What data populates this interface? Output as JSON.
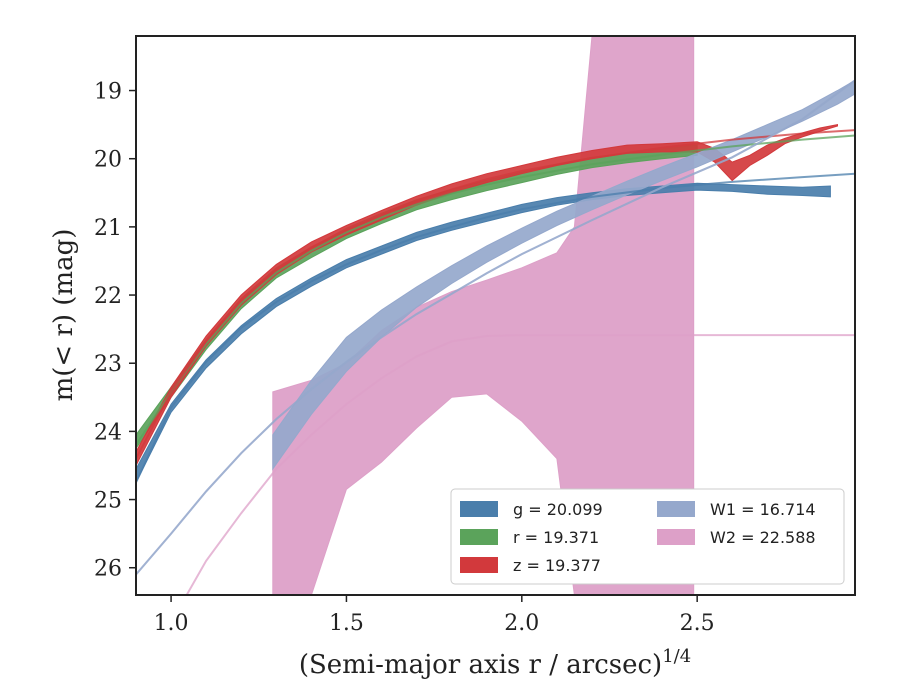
{
  "chart_data": {
    "type": "line",
    "xlabel": "(Semi-major axis r / arcsec)",
    "xlabel_superscript": "1/4",
    "ylabel": "m(< r) (mag)",
    "xlim": [
      0.9,
      2.95
    ],
    "ylim": [
      26.4,
      18.2
    ],
    "y_inverted": true,
    "xticks": [
      1.0,
      1.5,
      2.0,
      2.5
    ],
    "xtick_labels": [
      "1.0",
      "1.5",
      "2.0",
      "2.5"
    ],
    "yticks": [
      19,
      20,
      21,
      22,
      23,
      24,
      25,
      26
    ],
    "ytick_labels": [
      "19",
      "20",
      "21",
      "22",
      "23",
      "24",
      "25",
      "26"
    ],
    "grid": false,
    "legend_position": "lower-right",
    "series": [
      {
        "name": "g",
        "label": "g = 20.099",
        "color": "#4a7eab",
        "band": {
          "x": [
            0.9,
            1.0,
            1.1,
            1.2,
            1.3,
            1.4,
            1.5,
            1.6,
            1.7,
            1.8,
            1.9,
            2.0,
            2.1,
            2.2,
            2.3,
            2.4,
            2.5,
            2.6,
            2.7,
            2.8,
            2.88
          ],
          "y_low": [
            24.55,
            23.6,
            22.95,
            22.45,
            22.05,
            21.75,
            21.48,
            21.28,
            21.08,
            20.93,
            20.8,
            20.67,
            20.57,
            20.5,
            20.44,
            20.4,
            20.36,
            20.38,
            20.4,
            20.42,
            20.4
          ],
          "y_high": [
            24.75,
            23.72,
            23.07,
            22.57,
            22.17,
            21.87,
            21.6,
            21.4,
            21.2,
            21.05,
            20.92,
            20.79,
            20.68,
            20.6,
            20.54,
            20.5,
            20.46,
            20.48,
            20.52,
            20.54,
            20.56
          ]
        },
        "model": {
          "x": [
            0.9,
            1.0,
            1.1,
            1.2,
            1.3,
            1.4,
            1.5,
            1.6,
            1.7,
            1.8,
            1.9,
            2.0,
            2.2,
            2.4,
            2.6,
            2.8,
            2.95
          ],
          "y": [
            24.75,
            23.65,
            22.98,
            22.48,
            22.1,
            21.8,
            21.55,
            21.34,
            21.15,
            21.0,
            20.86,
            20.74,
            20.56,
            20.43,
            20.34,
            20.27,
            20.22
          ]
        }
      },
      {
        "name": "r",
        "label": "r = 19.371",
        "color": "#5ba35b",
        "band": {
          "x": [
            0.9,
            1.0,
            1.1,
            1.2,
            1.3,
            1.4,
            1.5,
            1.6,
            1.7,
            1.8,
            1.9,
            2.0,
            2.1,
            2.2,
            2.3,
            2.4,
            2.5
          ],
          "y_low": [
            24.05,
            23.35,
            22.65,
            22.05,
            21.6,
            21.3,
            21.02,
            20.8,
            20.6,
            20.45,
            20.32,
            20.2,
            20.08,
            19.98,
            19.92,
            19.86,
            19.8
          ],
          "y_high": [
            24.25,
            23.5,
            22.8,
            22.2,
            21.75,
            21.45,
            21.17,
            20.95,
            20.75,
            20.6,
            20.47,
            20.35,
            20.23,
            20.13,
            20.06,
            20.0,
            19.95
          ]
        },
        "model": {
          "x": [
            0.9,
            1.0,
            1.1,
            1.2,
            1.3,
            1.4,
            1.5,
            1.6,
            1.7,
            1.8,
            1.9,
            2.0,
            2.2,
            2.4,
            2.6,
            2.8,
            2.95
          ],
          "y": [
            24.2,
            23.42,
            22.72,
            22.12,
            21.67,
            21.35,
            21.08,
            20.86,
            20.67,
            20.51,
            20.38,
            20.27,
            20.08,
            19.94,
            19.82,
            19.72,
            19.66
          ]
        }
      },
      {
        "name": "z",
        "label": "z = 19.377",
        "color": "#d2393c",
        "band": {
          "x": [
            0.9,
            1.0,
            1.1,
            1.2,
            1.3,
            1.4,
            1.5,
            1.6,
            1.7,
            1.8,
            1.9,
            2.0,
            2.1,
            2.2,
            2.3,
            2.4,
            2.5,
            2.55,
            2.6,
            2.65,
            2.7,
            2.75,
            2.8,
            2.85,
            2.9
          ],
          "y_low": [
            24.3,
            23.35,
            22.6,
            22.0,
            21.55,
            21.22,
            20.98,
            20.76,
            20.55,
            20.37,
            20.22,
            20.1,
            19.98,
            19.88,
            19.8,
            19.78,
            19.75,
            19.85,
            20.05,
            19.95,
            19.8,
            19.7,
            19.62,
            19.55,
            19.5
          ],
          "y_high": [
            24.5,
            23.5,
            22.75,
            22.15,
            21.7,
            21.37,
            21.12,
            20.9,
            20.68,
            20.5,
            20.35,
            20.22,
            20.1,
            20.0,
            19.92,
            19.9,
            19.9,
            20.05,
            20.32,
            20.1,
            19.95,
            19.78,
            19.68,
            19.6,
            19.52
          ]
        },
        "model": {
          "x": [
            0.9,
            1.0,
            1.1,
            1.2,
            1.3,
            1.4,
            1.5,
            1.6,
            1.7,
            1.8,
            1.9,
            2.0,
            2.2,
            2.4,
            2.6,
            2.8,
            2.95
          ],
          "y": [
            24.4,
            23.42,
            22.68,
            22.08,
            21.63,
            21.3,
            21.05,
            20.83,
            20.62,
            20.45,
            20.3,
            20.18,
            19.99,
            19.84,
            19.72,
            19.63,
            19.58
          ]
        }
      },
      {
        "name": "W1",
        "label": "W1 = 16.714",
        "color": "#95a8cc",
        "band": {
          "x": [
            1.29,
            1.4,
            1.5,
            1.6,
            1.7,
            1.8,
            1.9,
            2.0,
            2.1,
            2.2,
            2.3,
            2.4,
            2.5,
            2.6,
            2.7,
            2.8,
            2.9,
            2.95
          ],
          "y_low": [
            24.05,
            23.25,
            22.62,
            22.22,
            21.88,
            21.57,
            21.28,
            21.02,
            20.77,
            20.55,
            20.33,
            20.12,
            19.92,
            19.72,
            19.5,
            19.28,
            19.0,
            18.85
          ],
          "y_high": [
            24.55,
            23.75,
            23.12,
            22.62,
            22.18,
            21.83,
            21.52,
            21.24,
            20.98,
            20.75,
            20.53,
            20.32,
            20.12,
            19.9,
            19.68,
            19.45,
            19.2,
            19.05
          ]
        },
        "model": {
          "x": [
            0.9,
            1.0,
            1.1,
            1.2,
            1.3,
            1.4,
            1.5,
            1.6,
            1.7,
            1.8,
            1.9,
            2.0,
            2.2,
            2.4,
            2.6,
            2.8,
            2.95
          ],
          "y": [
            26.1,
            25.5,
            24.88,
            24.32,
            23.82,
            23.38,
            22.98,
            22.62,
            22.28,
            21.98,
            21.68,
            21.4,
            20.9,
            20.42,
            19.98,
            19.42,
            18.85
          ]
        }
      },
      {
        "name": "W2",
        "label": "W2 = 22.588",
        "color": "#dda0c8",
        "band": {
          "x": [
            1.29,
            1.4,
            1.5,
            1.6,
            1.7,
            1.8,
            1.9,
            2.0,
            2.1,
            2.15,
            2.2,
            2.3,
            2.4,
            2.49
          ],
          "y_low": [
            23.42,
            23.25,
            23.0,
            22.52,
            22.18,
            21.95,
            21.78,
            21.6,
            21.38,
            21.0,
            18.2,
            18.2,
            18.2,
            18.2
          ],
          "y_high": [
            26.4,
            26.4,
            24.85,
            24.45,
            23.95,
            23.5,
            23.45,
            23.85,
            24.4,
            26.4,
            26.4,
            26.4,
            26.4,
            26.4
          ]
        },
        "model": {
          "x": [
            1.0,
            1.1,
            1.2,
            1.3,
            1.4,
            1.5,
            1.6,
            1.7,
            1.8,
            1.9,
            2.0,
            2.5,
            2.95
          ],
          "y": [
            26.8,
            25.9,
            25.2,
            24.55,
            24.05,
            23.6,
            23.22,
            22.9,
            22.68,
            22.6,
            22.588,
            22.588,
            22.588
          ]
        }
      }
    ]
  },
  "legend": {
    "columns": [
      [
        "g",
        "r",
        "z"
      ],
      [
        "W1",
        "W2"
      ]
    ]
  }
}
